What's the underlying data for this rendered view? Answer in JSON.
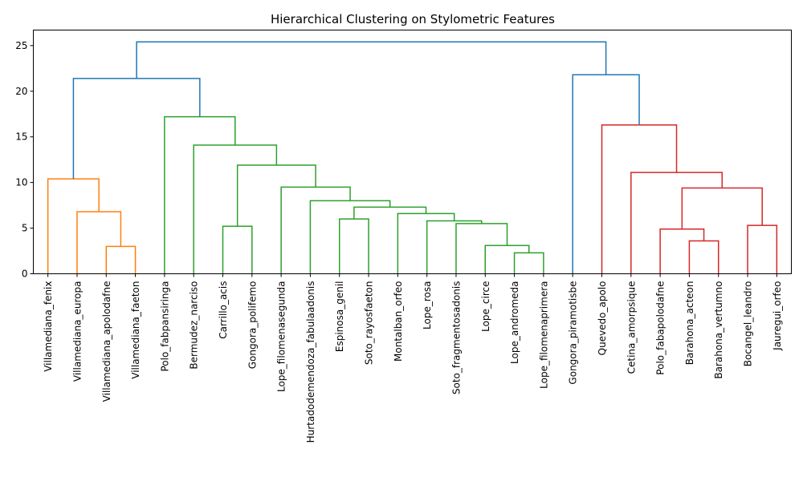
{
  "chart_data": {
    "type": "dendrogram",
    "title": "Hierarchical Clustering on Stylometric Features",
    "xlabel": "",
    "ylabel": "",
    "ylim": [
      0,
      26.7
    ],
    "yticks": [
      0,
      5,
      10,
      15,
      20,
      25
    ],
    "grid": false,
    "legend": "none",
    "leaves": [
      "Villamediana_fenix",
      "Villamediana_europa",
      "Villamediana_apolodafne",
      "Villamediana_faeton",
      "Polo_fabpansiringa",
      "Bermudez_narciso",
      "Carrillo_acis",
      "Gongora_polifemo",
      "Lope_filomenasegunda",
      "Hurtadodemendoza_fabulaadonis",
      "Espinosa_genil",
      "Soto_rayosfaeton",
      "Montalban_orfeo",
      "Lope_rosa",
      "Soto_fragmentosadonis",
      "Lope_circe",
      "Lope_andromeda",
      "Lope_filomenaprimera",
      "Gongora_piramotisbe",
      "Quevedo_apolo",
      "Cetina_amorpsique",
      "Polo_fabapolodafne",
      "Barahona_acteon",
      "Barahona_vertumno",
      "Bocangel_leandro",
      "Jauregui_orfeo"
    ],
    "merges": [
      {
        "left": "Villamediana_apolodafne",
        "right": "Villamediana_faeton",
        "height": 3.0,
        "color": "#ff7f0e"
      },
      {
        "left": "Villamediana_europa",
        "right": 0,
        "height": 6.8,
        "color": "#ff7f0e"
      },
      {
        "left": "Villamediana_fenix",
        "right": 1,
        "height": 10.4,
        "color": "#ff7f0e"
      },
      {
        "left": "Carrillo_acis",
        "right": "Gongora_polifemo",
        "height": 5.2,
        "color": "#2ca02c"
      },
      {
        "left": "Espinosa_genil",
        "right": "Soto_rayosfaeton",
        "height": 6.0,
        "color": "#2ca02c"
      },
      {
        "left": "Lope_andromeda",
        "right": "Lope_filomenaprimera",
        "height": 2.3,
        "color": "#2ca02c"
      },
      {
        "left": "Lope_circe",
        "right": 5,
        "height": 3.1,
        "color": "#2ca02c"
      },
      {
        "left": "Soto_fragmentosadonis",
        "right": 6,
        "height": 5.5,
        "color": "#2ca02c"
      },
      {
        "left": "Lope_rosa",
        "right": 7,
        "height": 5.8,
        "color": "#2ca02c"
      },
      {
        "left": "Montalban_orfeo",
        "right": 8,
        "height": 6.6,
        "color": "#2ca02c"
      },
      {
        "left": 4,
        "right": 9,
        "height": 7.3,
        "color": "#2ca02c"
      },
      {
        "left": "Hurtadodemendoza_fabulaadonis",
        "right": 10,
        "height": 8.0,
        "color": "#2ca02c"
      },
      {
        "left": "Lope_filomenasegunda",
        "right": 11,
        "height": 9.5,
        "color": "#2ca02c"
      },
      {
        "left": 3,
        "right": 12,
        "height": 11.9,
        "color": "#2ca02c"
      },
      {
        "left": "Bermudez_narciso",
        "right": 13,
        "height": 14.1,
        "color": "#2ca02c"
      },
      {
        "left": "Polo_fabpansiringa",
        "right": 14,
        "height": 17.2,
        "color": "#2ca02c"
      },
      {
        "left": 2,
        "right": 15,
        "height": 21.4,
        "color": "#1f77b4"
      },
      {
        "left": "Barahona_acteon",
        "right": "Barahona_vertumno",
        "height": 3.6,
        "color": "#d62728"
      },
      {
        "left": "Polo_fabapolodafne",
        "right": 17,
        "height": 4.9,
        "color": "#d62728"
      },
      {
        "left": "Bocangel_leandro",
        "right": "Jauregui_orfeo",
        "height": 5.3,
        "color": "#d62728"
      },
      {
        "left": 18,
        "right": 19,
        "height": 9.4,
        "color": "#d62728"
      },
      {
        "left": "Cetina_amorpsique",
        "right": 20,
        "height": 11.1,
        "color": "#d62728"
      },
      {
        "left": "Quevedo_apolo",
        "right": 21,
        "height": 16.3,
        "color": "#d62728"
      },
      {
        "left": "Gongora_piramotisbe",
        "right": 22,
        "height": 21.8,
        "color": "#1f77b4"
      },
      {
        "left": 16,
        "right": 23,
        "height": 25.4,
        "color": "#1f77b4"
      }
    ]
  }
}
